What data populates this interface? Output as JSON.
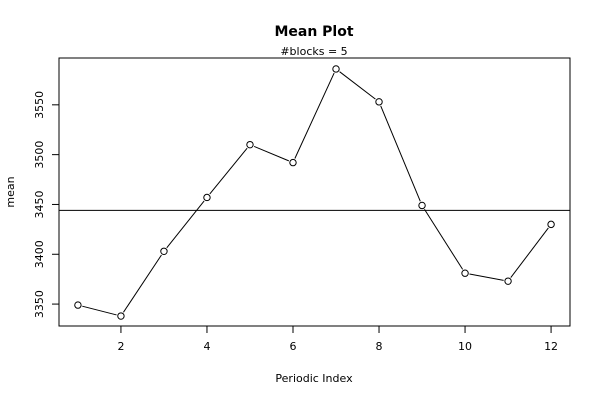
{
  "chart_data": {
    "type": "line",
    "title": "Mean Plot",
    "subtitle": "#blocks =  5",
    "xlabel": "Periodic Index",
    "ylabel": "mean",
    "x": [
      1,
      2,
      3,
      4,
      5,
      6,
      7,
      8,
      9,
      10,
      11,
      12
    ],
    "series": [
      {
        "values": [
          3349,
          3338,
          3403,
          3457,
          3510,
          3492,
          3586,
          3553,
          3449,
          3381,
          3373,
          3430
        ]
      }
    ],
    "reference_line": {
      "y": 3444
    },
    "xlim": [
      0.56,
      12.44
    ],
    "ylim": [
      3328,
      3597
    ],
    "xticks": [
      2,
      4,
      6,
      8,
      10,
      12
    ],
    "yticks": [
      3350,
      3400,
      3450,
      3500,
      3550
    ],
    "marker": "open-circle",
    "grid": false,
    "legend": "none"
  }
}
